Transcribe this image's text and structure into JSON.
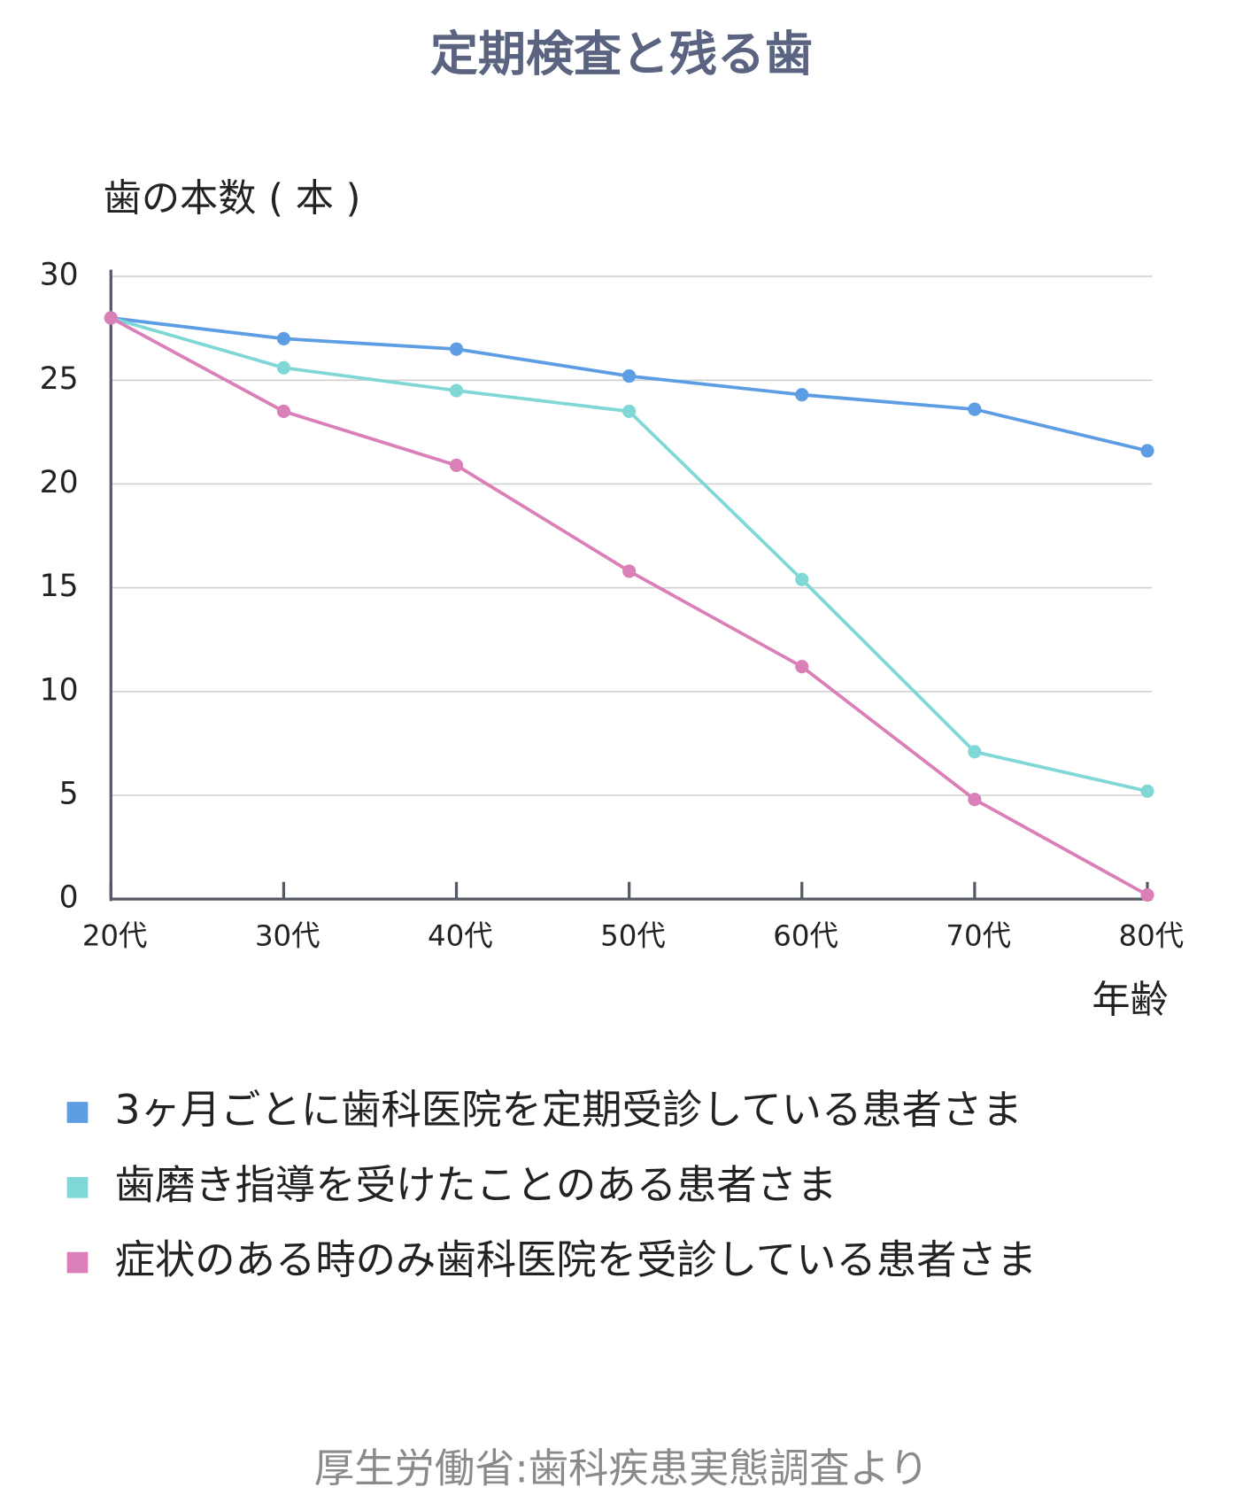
{
  "chart_data": {
    "type": "line",
    "title": "定期検査と残る歯",
    "y_label": "歯の本数 ( 本 )",
    "x_label": "年齢",
    "source": "厚生労働省:歯科疾患実態調査より",
    "categories": [
      "20代",
      "30代",
      "40代",
      "50代",
      "60代",
      "70代",
      "80代"
    ],
    "series": [
      {
        "name": "3ヶ月ごとに歯科医院を定期受診している患者さま",
        "color": "#5d9de3",
        "values": [
          28,
          27,
          26.5,
          25.2,
          24.3,
          23.6,
          21.6
        ]
      },
      {
        "name": "歯磨き指導を受けたことのある患者さま",
        "color": "#80d8d6",
        "values": [
          28,
          25.6,
          24.5,
          23.5,
          15.4,
          7.1,
          5.2
        ]
      },
      {
        "name": "症状のある時のみ歯科医院を受診している患者さま",
        "color": "#db7fb8",
        "values": [
          28,
          23.5,
          20.9,
          15.8,
          11.2,
          4.8,
          0.2
        ]
      }
    ],
    "ylim": [
      0,
      30
    ],
    "yticks": [
      0,
      5,
      10,
      15,
      20,
      25,
      30
    ],
    "grid": true
  }
}
